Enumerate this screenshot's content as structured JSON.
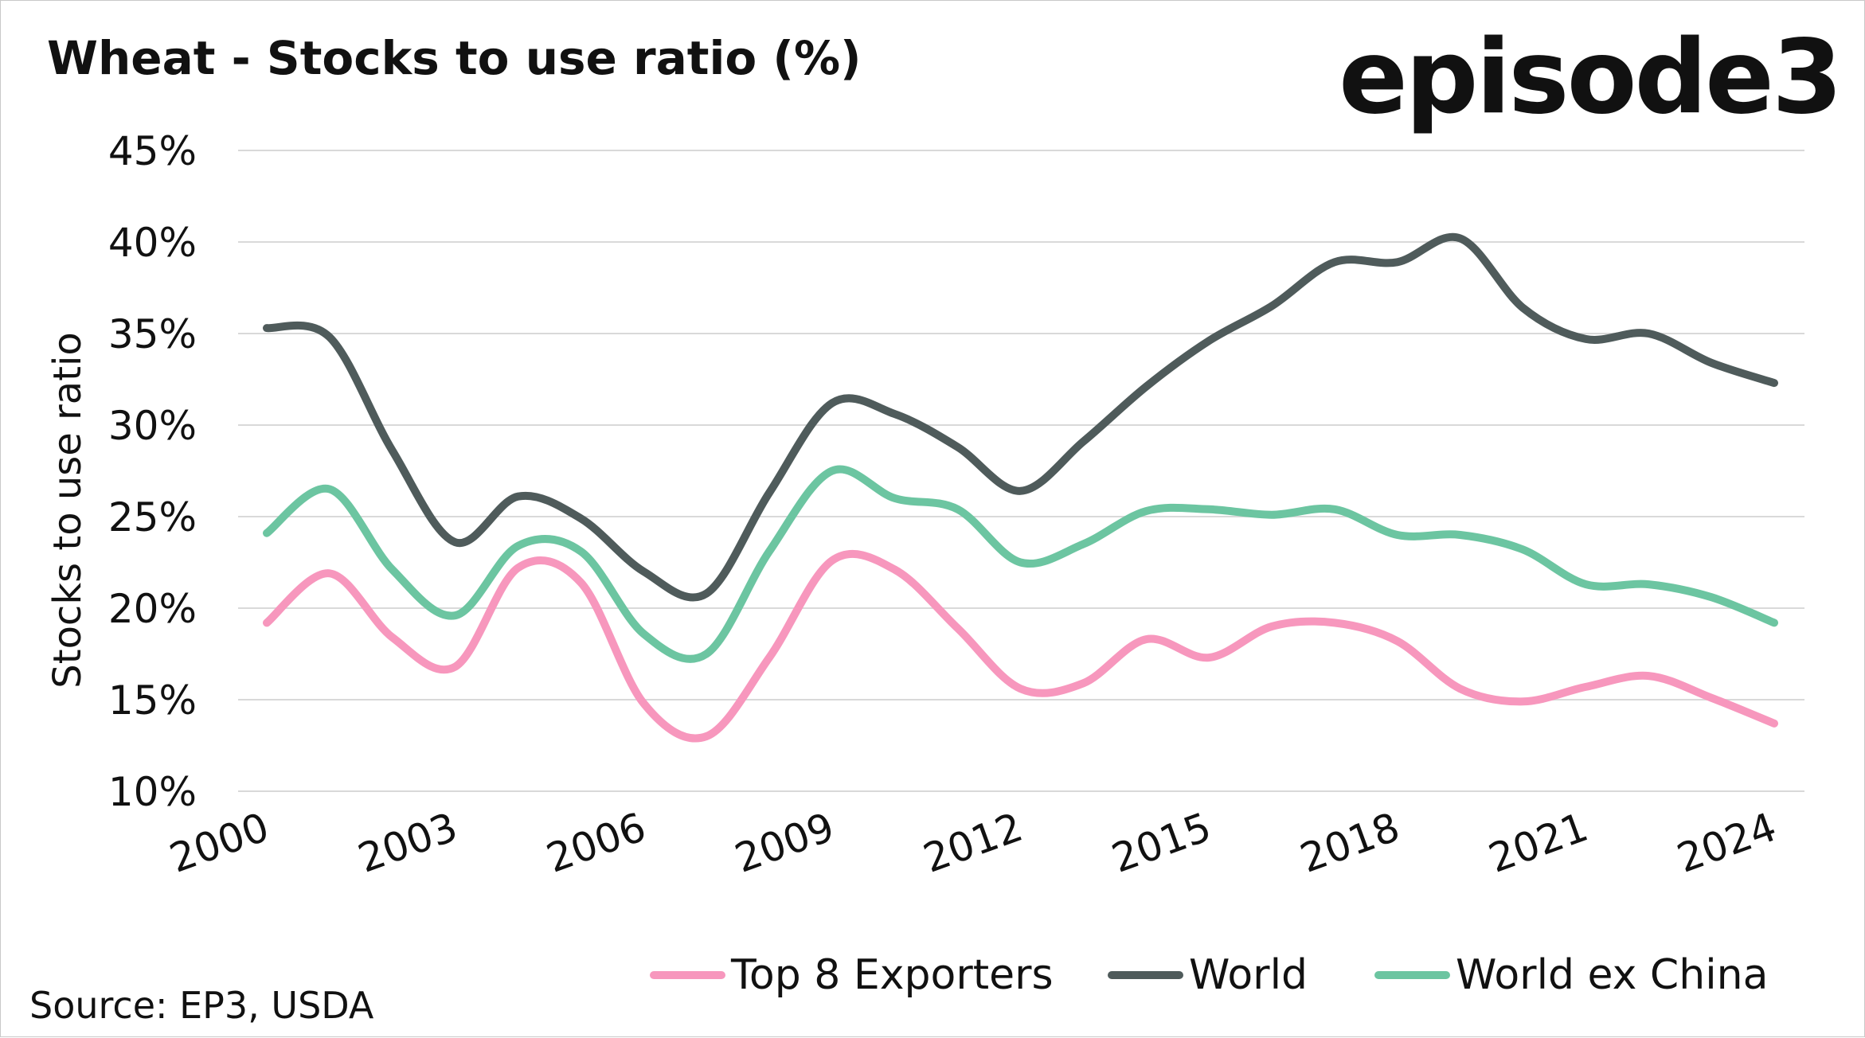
{
  "source": "Source: EP3, USDA",
  "brand": {
    "logo_text": "episode3"
  },
  "chart_data": {
    "type": "line",
    "title": "Wheat - Stocks to use ratio (%)",
    "xlabel": "",
    "ylabel": "Stocks to use ratio",
    "ylim": [
      10,
      45
    ],
    "yticks": [
      "45%",
      "40%",
      "35%",
      "30%",
      "25%",
      "20%",
      "15%",
      "10%"
    ],
    "xticks": [
      "2000",
      "2003",
      "2006",
      "2009",
      "2012",
      "2015",
      "2018",
      "2021",
      "2024"
    ],
    "grid": true,
    "legend_position": "bottom",
    "x": [
      2000,
      2001,
      2002,
      2003,
      2004,
      2005,
      2006,
      2007,
      2008,
      2009,
      2010,
      2011,
      2012,
      2013,
      2014,
      2015,
      2016,
      2017,
      2018,
      2019,
      2020,
      2021,
      2022,
      2023,
      2024
    ],
    "series": [
      {
        "name": "Top 8 Exporters",
        "color": "#f797bd",
        "values": [
          19.2,
          21.9,
          18.4,
          16.8,
          22.2,
          21.4,
          14.8,
          13.0,
          17.3,
          22.6,
          22.1,
          18.9,
          15.6,
          15.9,
          18.3,
          17.3,
          19.0,
          19.2,
          18.2,
          15.6,
          14.9,
          15.7,
          16.3,
          15.1,
          13.7
        ]
      },
      {
        "name": "World",
        "color": "#4f5b5b",
        "values": [
          35.3,
          34.8,
          28.6,
          23.6,
          26.1,
          24.9,
          22.0,
          20.8,
          26.3,
          31.2,
          30.6,
          28.8,
          26.4,
          29.1,
          32.1,
          34.6,
          36.5,
          38.9,
          38.9,
          40.2,
          36.4,
          34.7,
          35.0,
          33.4,
          32.3
        ]
      },
      {
        "name": "World ex China",
        "color": "#6cc5a1",
        "values": [
          24.1,
          26.5,
          22.1,
          19.6,
          23.4,
          23.1,
          18.6,
          17.5,
          23.1,
          27.5,
          26.0,
          25.4,
          22.5,
          23.5,
          25.3,
          25.4,
          25.1,
          25.4,
          24.0,
          24.0,
          23.2,
          21.3,
          21.3,
          20.6,
          19.2
        ]
      }
    ]
  }
}
